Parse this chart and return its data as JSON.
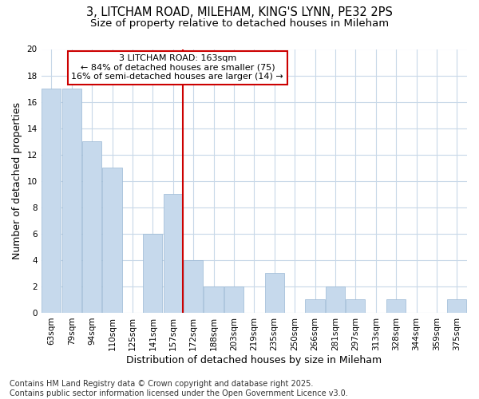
{
  "title_line1": "3, LITCHAM ROAD, MILEHAM, KING'S LYNN, PE32 2PS",
  "title_line2": "Size of property relative to detached houses in Mileham",
  "xlabel": "Distribution of detached houses by size in Mileham",
  "ylabel": "Number of detached properties",
  "categories": [
    "63sqm",
    "79sqm",
    "94sqm",
    "110sqm",
    "125sqm",
    "141sqm",
    "157sqm",
    "172sqm",
    "188sqm",
    "203sqm",
    "219sqm",
    "235sqm",
    "250sqm",
    "266sqm",
    "281sqm",
    "297sqm",
    "313sqm",
    "328sqm",
    "344sqm",
    "359sqm",
    "375sqm"
  ],
  "values": [
    17,
    17,
    13,
    11,
    0,
    6,
    9,
    4,
    2,
    2,
    0,
    3,
    0,
    1,
    2,
    1,
    0,
    1,
    0,
    0,
    1
  ],
  "bar_color": "#c6d9ec",
  "bar_edge_color": "#9ab8d4",
  "bg_color": "#ffffff",
  "grid_color": "#c8d8e8",
  "annotation_box_text": "3 LITCHAM ROAD: 163sqm\n← 84% of detached houses are smaller (75)\n16% of semi-detached houses are larger (14) →",
  "annotation_line_color": "#cc0000",
  "annotation_box_edge_color": "#cc0000",
  "annotation_box_bg": "#ffffff",
  "ylim": [
    0,
    20
  ],
  "yticks": [
    0,
    2,
    4,
    6,
    8,
    10,
    12,
    14,
    16,
    18,
    20
  ],
  "red_line_x": 7.0,
  "footer_line1": "Contains HM Land Registry data © Crown copyright and database right 2025.",
  "footer_line2": "Contains public sector information licensed under the Open Government Licence v3.0.",
  "title_fontsize": 10.5,
  "subtitle_fontsize": 9.5,
  "axis_label_fontsize": 9,
  "tick_fontsize": 7.5,
  "annotation_fontsize": 8,
  "footer_fontsize": 7
}
